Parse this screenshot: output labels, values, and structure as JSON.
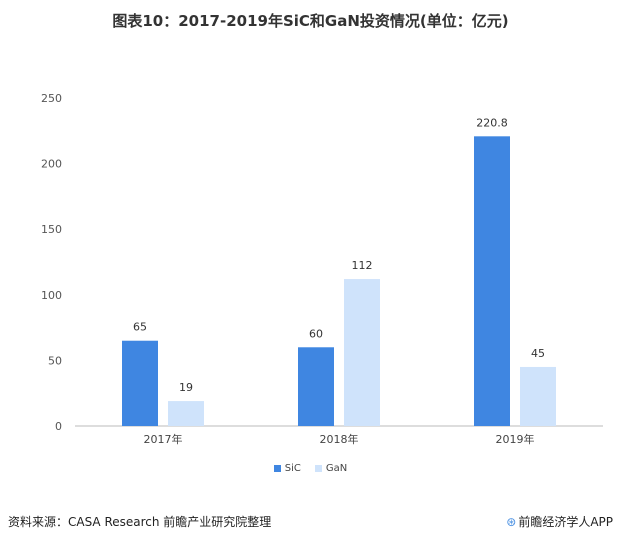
{
  "title": "图表10：2017-2019年SiC和GaN投资情况(单位：亿元)",
  "source": "资料来源：CASA Research 前瞻产业研究院整理",
  "brand": "前瞻经济学人APP",
  "colors": {
    "SiC": "#3f86e1",
    "GaN": "#cfe3fb"
  },
  "chart_data": {
    "type": "bar",
    "categories": [
      "2017年",
      "2018年",
      "2019年"
    ],
    "series": [
      {
        "name": "SiC",
        "values": [
          65,
          60,
          220.8
        ]
      },
      {
        "name": "GaN",
        "values": [
          19,
          112,
          45
        ]
      }
    ],
    "ylim": [
      0,
      250
    ],
    "yticks": [
      0,
      50,
      100,
      150,
      200,
      250
    ],
    "data_labels": true,
    "legend": "bottom",
    "grid": false
  }
}
